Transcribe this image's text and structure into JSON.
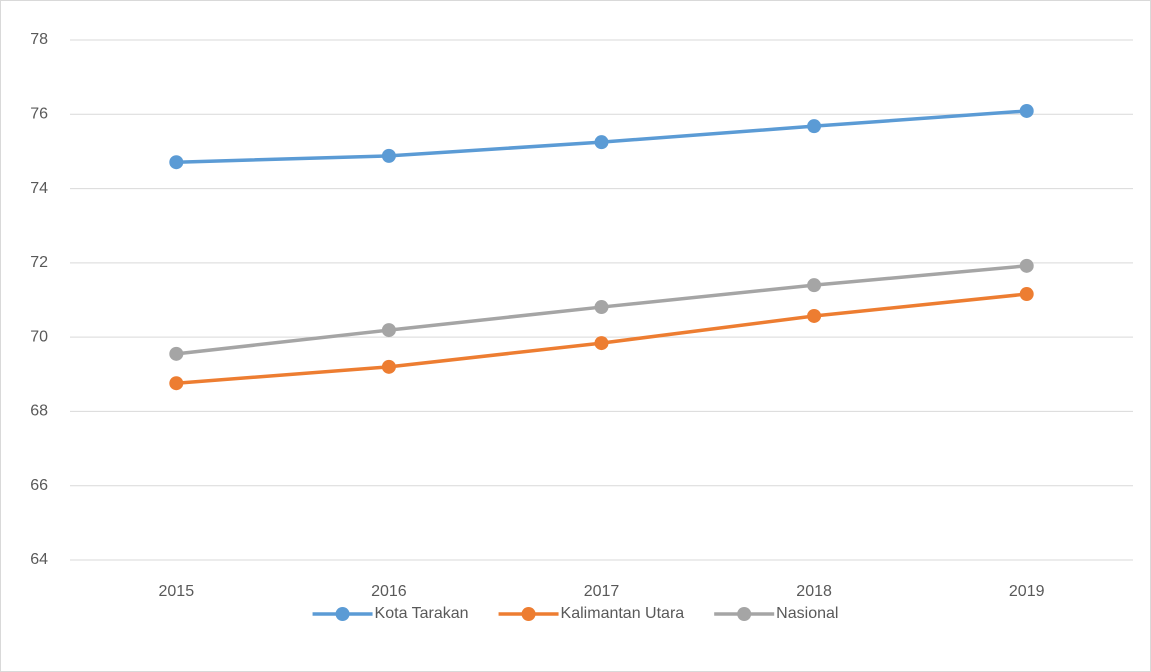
{
  "chart_data": {
    "type": "line",
    "categories": [
      "2015",
      "2016",
      "2017",
      "2018",
      "2019"
    ],
    "series": [
      {
        "name": "Kota Tarakan",
        "color": "#5b9bd5",
        "values": [
          74.71,
          74.88,
          75.25,
          75.68,
          76.09
        ]
      },
      {
        "name": "Kalimantan Utara",
        "color": "#ed7d31",
        "values": [
          68.76,
          69.2,
          69.84,
          70.57,
          71.16
        ]
      },
      {
        "name": "Nasional",
        "color": "#a5a5a5",
        "values": [
          69.55,
          70.19,
          70.81,
          71.4,
          71.92
        ]
      }
    ],
    "ylim": [
      64,
      78
    ],
    "yticks": [
      64,
      66,
      68,
      70,
      72,
      74,
      76,
      78
    ],
    "grid": true,
    "legend": "bottom"
  }
}
